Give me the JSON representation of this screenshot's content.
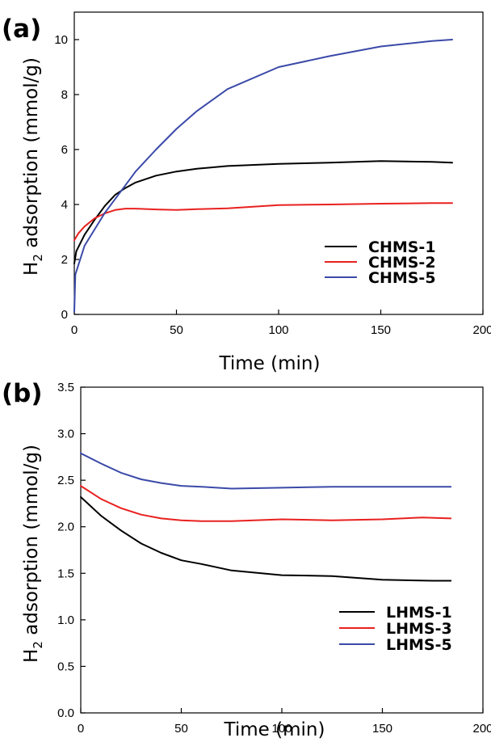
{
  "chart_data": [
    {
      "panel_label": "(a)",
      "type": "line",
      "xlabel": "Time (min)",
      "ylabel": "H2 adsorption (mmol/g)",
      "xlim": [
        0,
        200
      ],
      "ylim": [
        0,
        11
      ],
      "x_ticks": [
        0,
        50,
        100,
        150,
        200
      ],
      "y_ticks": [
        0,
        2,
        4,
        6,
        8,
        10
      ],
      "x_tick_labels": [
        "0",
        "50",
        "100",
        "150",
        "200"
      ],
      "y_tick_labels": [
        "0",
        "2",
        "4",
        "6",
        "8",
        "10"
      ],
      "grid": false,
      "legend_position": "bottom-right",
      "series": [
        {
          "name": "CHMS-1",
          "color": "#000000",
          "x": [
            0,
            1,
            5,
            10,
            15,
            20,
            25,
            30,
            40,
            50,
            60,
            75,
            100,
            125,
            150,
            175,
            185
          ],
          "y": [
            1.85,
            2.3,
            2.9,
            3.45,
            3.95,
            4.35,
            4.6,
            4.8,
            5.05,
            5.2,
            5.3,
            5.4,
            5.48,
            5.52,
            5.58,
            5.55,
            5.52
          ]
        },
        {
          "name": "CHMS-2",
          "color": "#e8211f",
          "x": [
            0,
            2,
            5,
            10,
            15,
            20,
            25,
            30,
            40,
            50,
            60,
            75,
            100,
            125,
            150,
            175,
            185
          ],
          "y": [
            2.7,
            2.95,
            3.2,
            3.5,
            3.68,
            3.8,
            3.85,
            3.85,
            3.82,
            3.8,
            3.83,
            3.86,
            3.98,
            4.0,
            4.03,
            4.05,
            4.05
          ]
        },
        {
          "name": "CHMS-5",
          "color": "#3b4aa8",
          "x": [
            0,
            0.5,
            5,
            10,
            15,
            20,
            25,
            30,
            40,
            50,
            60,
            75,
            100,
            125,
            150,
            175,
            185
          ],
          "y": [
            0.1,
            1.45,
            2.5,
            3.1,
            3.7,
            4.2,
            4.7,
            5.2,
            6.0,
            6.75,
            7.4,
            8.2,
            9.0,
            9.4,
            9.75,
            9.95,
            10.0
          ]
        }
      ]
    },
    {
      "panel_label": "(b)",
      "type": "line",
      "xlabel": "Time (min)",
      "ylabel": "H2 adsorption (mmol/g)",
      "xlim": [
        0,
        200
      ],
      "ylim": [
        0,
        3.5
      ],
      "x_ticks": [
        0,
        50,
        100,
        150,
        200
      ],
      "y_ticks": [
        0,
        0.5,
        1.0,
        1.5,
        2.0,
        2.5,
        3.0,
        3.5
      ],
      "x_tick_labels": [
        "0",
        "50",
        "100",
        "150",
        "200"
      ],
      "y_tick_labels": [
        "0.0",
        "0.5",
        "1.0",
        "1.5",
        "2.0",
        "2.5",
        "3.0",
        "3.5"
      ],
      "grid": false,
      "legend_position": "bottom-right",
      "series": [
        {
          "name": "LHMS-1",
          "color": "#000000",
          "x": [
            0,
            10,
            20,
            30,
            40,
            50,
            60,
            75,
            100,
            125,
            150,
            175,
            184
          ],
          "y": [
            2.32,
            2.12,
            1.96,
            1.82,
            1.72,
            1.64,
            1.6,
            1.53,
            1.48,
            1.47,
            1.43,
            1.42,
            1.42
          ]
        },
        {
          "name": "LHMS-3",
          "color": "#e8211f",
          "x": [
            0,
            10,
            20,
            30,
            40,
            50,
            60,
            75,
            100,
            125,
            150,
            170,
            184
          ],
          "y": [
            2.44,
            2.3,
            2.2,
            2.13,
            2.09,
            2.07,
            2.06,
            2.06,
            2.08,
            2.07,
            2.08,
            2.1,
            2.09
          ]
        },
        {
          "name": "LHMS-5",
          "color": "#3b4aa8",
          "x": [
            0,
            10,
            20,
            30,
            40,
            50,
            60,
            75,
            100,
            125,
            150,
            175,
            184
          ],
          "y": [
            2.79,
            2.68,
            2.58,
            2.51,
            2.47,
            2.44,
            2.43,
            2.41,
            2.42,
            2.43,
            2.43,
            2.43,
            2.43
          ]
        }
      ]
    }
  ]
}
